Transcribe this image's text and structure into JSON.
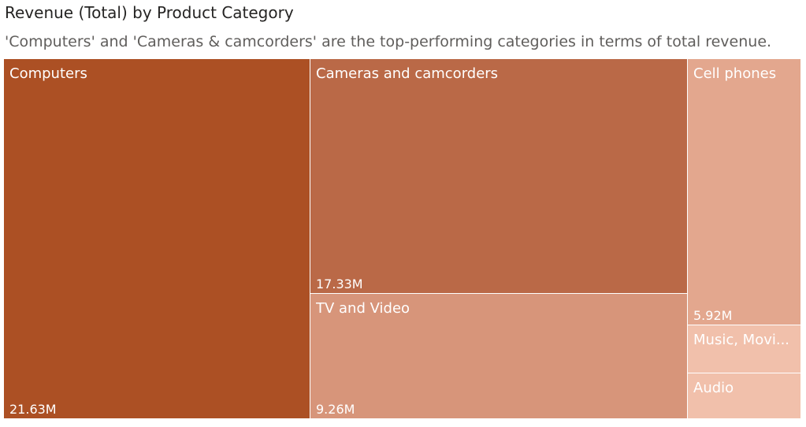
{
  "chart_data": {
    "type": "treemap",
    "title": "Revenue (Total) by Product Category",
    "subtitle": "'Computers' and 'Cameras & camcorders' are the top-performing categories in terms of total revenue.",
    "items": [
      {
        "name": "Computers",
        "value": 21.63,
        "value_label": "21.63M",
        "color": "#ac5024"
      },
      {
        "name": "Cameras and camcorders",
        "value": 17.33,
        "value_label": "17.33M",
        "color": "#ba6947"
      },
      {
        "name": "TV and Video",
        "value": 9.26,
        "value_label": "9.26M",
        "color": "#d7957a"
      },
      {
        "name": "Cell phones",
        "value": 5.92,
        "value_label": "5.92M",
        "color": "#e3a78e"
      },
      {
        "name": "Music, Movi...",
        "value": null,
        "value_label": "",
        "color": "#f1c0ab"
      },
      {
        "name": "Audio",
        "value": null,
        "value_label": "",
        "color": "#f1c0ab"
      }
    ]
  }
}
